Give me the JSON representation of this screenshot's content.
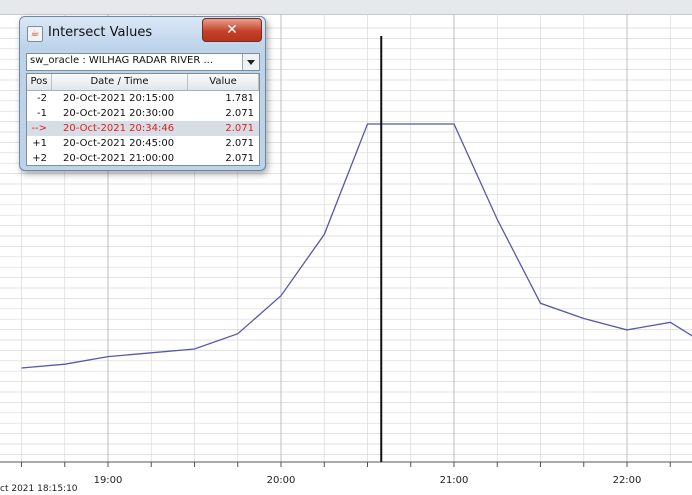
{
  "chart_data": {
    "type": "line",
    "x": [
      "18:30",
      "18:45",
      "19:00",
      "19:15",
      "19:30",
      "19:45",
      "20:00",
      "20:15",
      "20:30",
      "20:45",
      "21:00",
      "21:15",
      "21:30",
      "21:45",
      "22:00",
      "22:15",
      "22:30"
    ],
    "series": [
      {
        "values": [
          1.43,
          1.44,
          1.46,
          1.47,
          1.48,
          1.52,
          1.62,
          1.781,
          2.071,
          2.071,
          2.071,
          1.82,
          1.6,
          1.56,
          1.53,
          1.55,
          1.48
        ]
      }
    ],
    "x_tick_labels": [
      "19:00",
      "20:00",
      "21:00",
      "22:00"
    ],
    "cursor_time": "20:34:46",
    "grid": true,
    "colors": {
      "line": "#5858a8",
      "cursor": "#111111",
      "grid": "#d8d8d8"
    }
  },
  "axis_cut_label": "ct 2021 18:15:10",
  "dialog": {
    "title": "Intersect Values",
    "title_icon": "java-cup-icon",
    "close_glyph": "✕",
    "series_selector": "sw_oracle : WILHAG RADAR RIVER ...",
    "columns": [
      "Pos",
      "Date / Time",
      "Value"
    ],
    "rows": [
      {
        "pos": "-2",
        "datetime": "20-Oct-2021 20:15:00",
        "value": "1.781"
      },
      {
        "pos": "-1",
        "datetime": "20-Oct-2021 20:30:00",
        "value": "2.071"
      },
      {
        "pos": "-->",
        "datetime": "20-Oct-2021 20:34:46",
        "value": "2.071"
      },
      {
        "pos": "+1",
        "datetime": "20-Oct-2021 20:45:00",
        "value": "2.071"
      },
      {
        "pos": "+2",
        "datetime": "20-Oct-2021 21:00:00",
        "value": "2.071"
      }
    ]
  }
}
